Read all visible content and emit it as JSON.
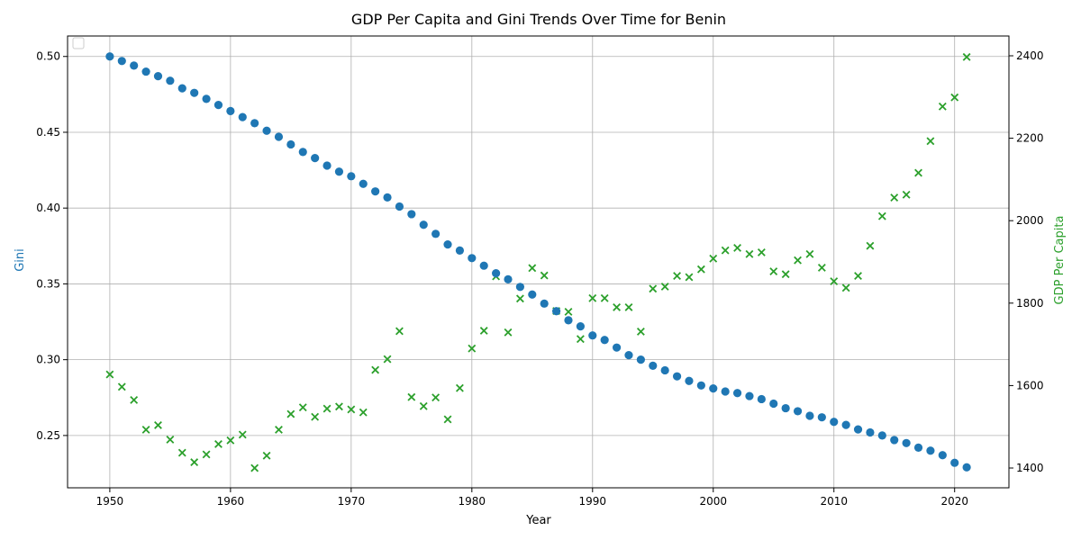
{
  "chart_data": {
    "type": "scatter",
    "title": "GDP Per Capita and Gini Trends Over Time for Benin",
    "xlabel": "Year",
    "ylabel_left": "Gini",
    "ylabel_right": "GDP Per Capita",
    "xlim": [
      1946.5,
      2024.5
    ],
    "ylim_left": [
      0.2155,
      0.5135
    ],
    "ylim_right": [
      1352,
      2448
    ],
    "x_ticks": [
      1950,
      1960,
      1970,
      1980,
      1990,
      2000,
      2010,
      2020
    ],
    "y_ticks_left": [
      0.25,
      0.3,
      0.35,
      0.4,
      0.45,
      0.5
    ],
    "y_ticks_right": [
      1400,
      1600,
      1800,
      2000,
      2200,
      2400
    ],
    "grid": true,
    "legend": "upper-left (empty)",
    "colors": {
      "gini": "#1f77b4",
      "gdp": "#2ca02c"
    },
    "x": [
      1950,
      1951,
      1952,
      1953,
      1954,
      1955,
      1956,
      1957,
      1958,
      1959,
      1960,
      1961,
      1962,
      1963,
      1964,
      1965,
      1966,
      1967,
      1968,
      1969,
      1970,
      1971,
      1972,
      1973,
      1974,
      1975,
      1976,
      1977,
      1978,
      1979,
      1980,
      1981,
      1982,
      1983,
      1984,
      1985,
      1986,
      1987,
      1988,
      1989,
      1990,
      1991,
      1992,
      1993,
      1994,
      1995,
      1996,
      1997,
      1998,
      1999,
      2000,
      2001,
      2002,
      2003,
      2004,
      2005,
      2006,
      2007,
      2008,
      2009,
      2010,
      2011,
      2012,
      2013,
      2014,
      2015,
      2016,
      2017,
      2018,
      2019,
      2020,
      2021
    ],
    "series": [
      {
        "axis": "left",
        "marker": "circle",
        "values": [
          0.5,
          0.497,
          0.494,
          0.49,
          0.487,
          0.484,
          0.479,
          0.476,
          0.472,
          0.468,
          0.464,
          0.46,
          0.456,
          0.451,
          0.447,
          0.442,
          0.437,
          0.433,
          0.428,
          0.424,
          0.421,
          0.416,
          0.411,
          0.407,
          0.401,
          0.396,
          0.389,
          0.383,
          0.376,
          0.372,
          0.367,
          0.362,
          0.357,
          0.353,
          0.348,
          0.343,
          0.337,
          0.332,
          0.326,
          0.322,
          0.316,
          0.313,
          0.308,
          0.303,
          0.3,
          0.296,
          0.293,
          0.289,
          0.286,
          0.283,
          0.281,
          0.279,
          0.278,
          0.276,
          0.274,
          0.271,
          0.268,
          0.266,
          0.263,
          0.262,
          0.259,
          0.257,
          0.254,
          0.252,
          0.25,
          0.247,
          0.245,
          0.242,
          0.24,
          0.237,
          0.232,
          0.229
        ]
      },
      {
        "axis": "right",
        "marker": "x",
        "values": [
          1627,
          1597,
          1565,
          1493,
          1504,
          1469,
          1437,
          1414,
          1433,
          1458,
          1467,
          1481,
          1400,
          1430,
          1493,
          1531,
          1547,
          1524,
          1544,
          1549,
          1542,
          1535,
          1638,
          1664,
          1732,
          1572,
          1550,
          1571,
          1518,
          1594,
          1690,
          1733,
          1865,
          1729,
          1811,
          1885,
          1867,
          1781,
          1779,
          1713,
          1812,
          1812,
          1790,
          1790,
          1731,
          1835,
          1840,
          1866,
          1863,
          1882,
          1908,
          1928,
          1934,
          1919,
          1923,
          1877,
          1870,
          1904,
          1919,
          1886,
          1853,
          1837,
          1866,
          1939,
          2011,
          2056,
          2063,
          2116,
          2193,
          2277,
          2299,
          2397
        ]
      }
    ]
  }
}
